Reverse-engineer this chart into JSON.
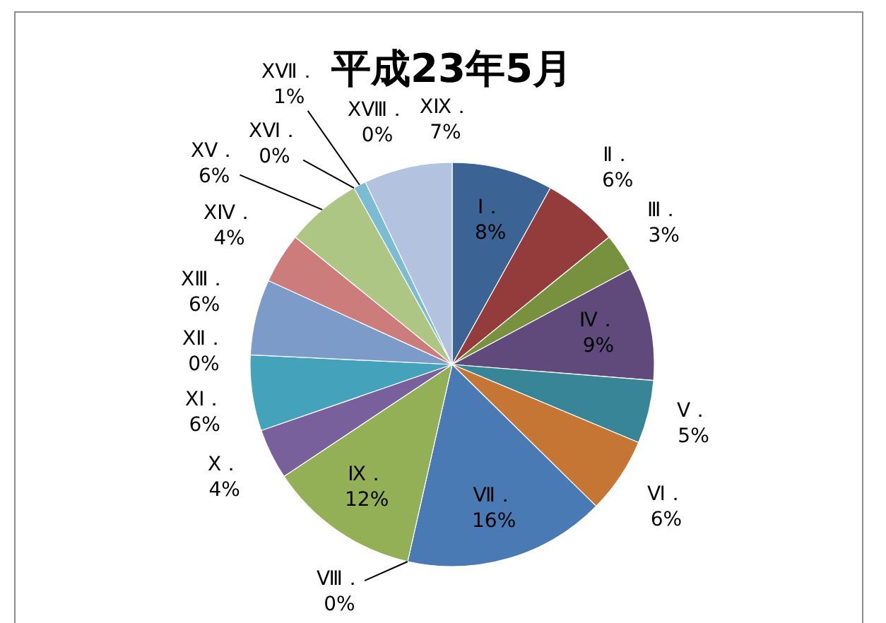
{
  "chart_data": {
    "type": "pie",
    "title": "平成23年5月",
    "categories": [
      "Ⅰ．",
      "Ⅱ．",
      "Ⅲ．",
      "Ⅳ．",
      "Ⅴ．",
      "Ⅵ．",
      "Ⅶ．",
      "Ⅷ．",
      "Ⅸ．",
      "Ⅹ．",
      "ⅩⅠ．",
      "ⅩⅡ．",
      "ⅩⅢ．",
      "ⅩⅣ．",
      "ⅩⅤ．",
      "ⅩⅥ．",
      "ⅩⅦ．",
      "ⅩⅧ．",
      "ⅩⅨ．"
    ],
    "values": [
      8,
      6,
      3,
      9,
      5,
      6,
      16,
      0,
      12,
      4,
      6,
      0,
      6,
      4,
      6,
      0,
      1,
      0,
      7
    ],
    "value_labels": [
      "8%",
      "6%",
      "3%",
      "9%",
      "5%",
      "6%",
      "16%",
      "0%",
      "12%",
      "4%",
      "6%",
      "0%",
      "6%",
      "4%",
      "6%",
      "0%",
      "1%",
      "0%",
      "7%"
    ],
    "colors": [
      "#3b6495",
      "#943c3b",
      "#77913f",
      "#604a7b",
      "#378597",
      "#c67634",
      "#4a7ab4",
      "#c0504d",
      "#93b057",
      "#77609c",
      "#44a3bb",
      "#f79646",
      "#7d9bc9",
      "#cc7c7b",
      "#adc683",
      "#a18fbc",
      "#7bbcd3",
      "#f9b07a",
      "#b3c2de"
    ]
  }
}
